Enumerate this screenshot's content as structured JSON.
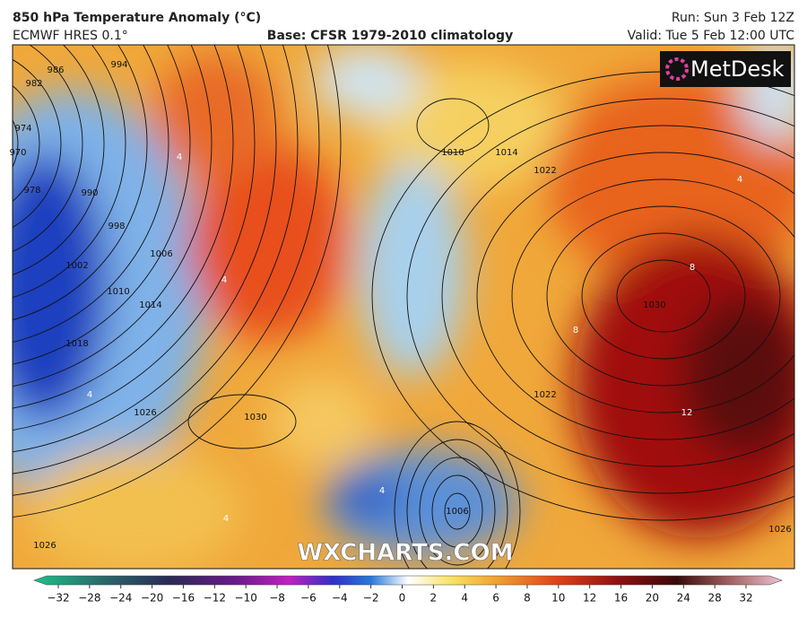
{
  "header": {
    "title": "850 hPa Temperature Anomaly (°C)",
    "model": "ECMWF HRES 0.1°",
    "base": "Base: CFSR 1979-2010 climatology",
    "run": "Run: Sun 3 Feb 12Z",
    "valid": "Valid: Tue 5 Feb 12:00 UTC"
  },
  "logo": "MetDesk",
  "watermark": "WXCHARTS.COM",
  "isobar_labels": [
    "986",
    "994",
    "982",
    "974",
    "970",
    "978",
    "990",
    "998",
    "1002",
    "1006",
    "1010",
    "1014",
    "1018",
    "1026",
    "1030",
    "1026",
    "1010",
    "1014",
    "1022",
    "1030",
    "1022",
    "1006",
    "1026"
  ],
  "anomaly_labels": [
    "4",
    "4",
    "4",
    "8",
    "8",
    "12",
    "4",
    "4",
    "4"
  ],
  "colorbar": {
    "ticks": [
      {
        "value": -32,
        "label": "−32"
      },
      {
        "value": -28,
        "label": "−28"
      },
      {
        "value": -24,
        "label": "−24"
      },
      {
        "value": -20,
        "label": "−20"
      },
      {
        "value": -16,
        "label": "−16"
      },
      {
        "value": -12,
        "label": "−12"
      },
      {
        "value": -10,
        "label": "−10"
      },
      {
        "value": -8,
        "label": "−8"
      },
      {
        "value": -6,
        "label": "−6"
      },
      {
        "value": -4,
        "label": "−4"
      },
      {
        "value": -2,
        "label": "−2"
      },
      0,
      2,
      4,
      6,
      8,
      10,
      12,
      16,
      20,
      24,
      28,
      32
    ]
  }
}
